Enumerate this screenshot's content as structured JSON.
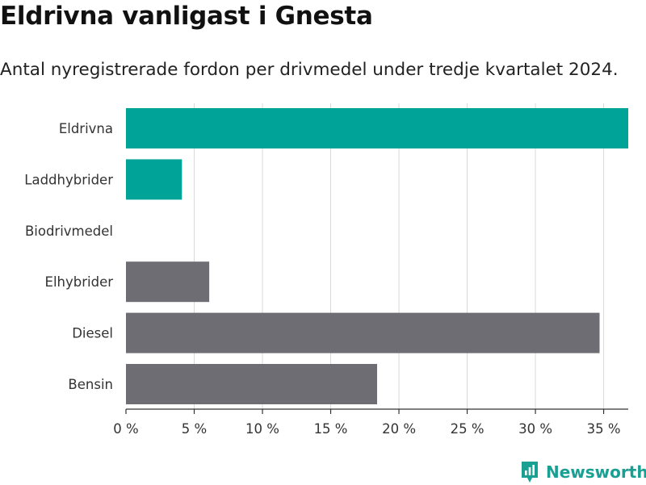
{
  "title": "Eldrivna vanligast i Gnesta",
  "subtitle": "Antal nyregistrerade fordon per drivmedel under tredje kvartalet 2024.",
  "brand": {
    "name": "Newsworthy",
    "color": "#1a9f93",
    "icon": "newsworthy-logo-icon"
  },
  "colors": {
    "highlight": "#00a398",
    "neutral": "#6e6d73",
    "grid": "#d9d9d9",
    "axis": "#333333"
  },
  "chart_data": {
    "type": "bar",
    "orientation": "horizontal",
    "categories": [
      "Eldrivna",
      "Laddhybrider",
      "Biodrivmedel",
      "Elhybrider",
      "Diesel",
      "Bensin"
    ],
    "values": [
      36.8,
      4.1,
      0,
      6.1,
      34.7,
      18.4
    ],
    "highlight": [
      true,
      true,
      true,
      false,
      false,
      false
    ],
    "xlim": [
      0,
      36.8
    ],
    "xticks": [
      0,
      5,
      10,
      15,
      20,
      25,
      30,
      35
    ],
    "tick_labels": [
      "0 %",
      "5 %",
      "10 %",
      "15 %",
      "20 %",
      "25 %",
      "30 %",
      "35 %"
    ],
    "grid": true,
    "xlabel": "",
    "ylabel": ""
  }
}
